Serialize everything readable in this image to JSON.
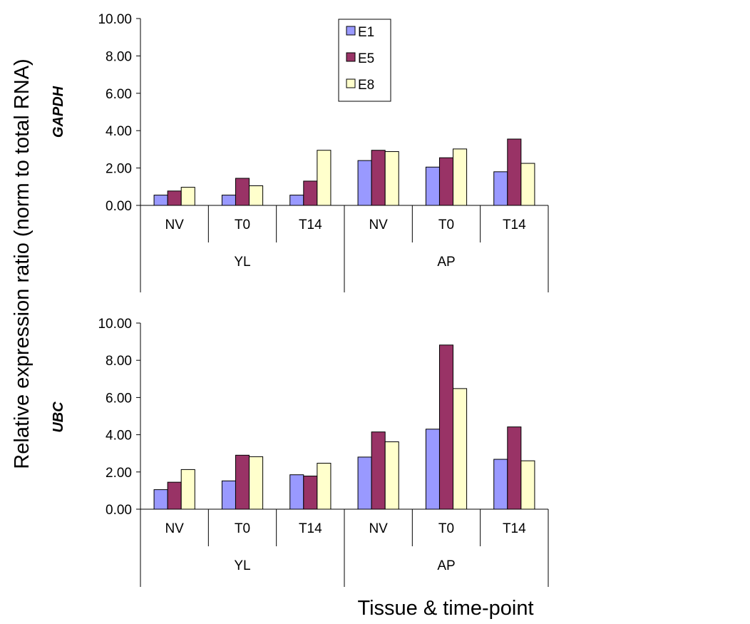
{
  "figure": {
    "ylabel": "Relative expression ratio (norm to total RNA)",
    "xlabel": "Tissue & time-point"
  },
  "colors": {
    "E1": "#9999ff",
    "E5": "#993366",
    "E8": "#ffffcc",
    "bar_stroke": "#000000"
  },
  "legend": {
    "placement": "top-center",
    "panel": "GAPDH",
    "entries": [
      "E1",
      "E5",
      "E8"
    ]
  },
  "chart_data": [
    {
      "type": "bar",
      "panel_label": "GAPDH",
      "groups": [
        {
          "label": "YL",
          "subcategories": [
            "NV",
            "T0",
            "T14"
          ]
        },
        {
          "label": "AP",
          "subcategories": [
            "NV",
            "T0",
            "T14"
          ]
        }
      ],
      "categories": [
        "NV",
        "T0",
        "T14",
        "NV",
        "T0",
        "T14"
      ],
      "series": [
        {
          "name": "E1",
          "values": [
            0.55,
            0.55,
            0.55,
            2.4,
            2.05,
            1.8
          ]
        },
        {
          "name": "E5",
          "values": [
            0.77,
            1.45,
            1.3,
            2.95,
            2.55,
            3.55
          ]
        },
        {
          "name": "E8",
          "values": [
            0.97,
            1.05,
            2.95,
            2.88,
            3.02,
            2.25
          ]
        }
      ],
      "ylim": [
        0,
        10
      ],
      "yticks": [
        "0.00",
        "2.00",
        "4.00",
        "6.00",
        "8.00",
        "10.00"
      ],
      "grid": false
    },
    {
      "type": "bar",
      "panel_label": "UBC",
      "groups": [
        {
          "label": "YL",
          "subcategories": [
            "NV",
            "T0",
            "T14"
          ]
        },
        {
          "label": "AP",
          "subcategories": [
            "NV",
            "T0",
            "T14"
          ]
        }
      ],
      "categories": [
        "NV",
        "T0",
        "T14",
        "NV",
        "T0",
        "T14"
      ],
      "series": [
        {
          "name": "E1",
          "values": [
            1.05,
            1.52,
            1.85,
            2.8,
            4.3,
            2.68
          ]
        },
        {
          "name": "E5",
          "values": [
            1.45,
            2.9,
            1.78,
            4.15,
            8.82,
            4.42
          ]
        },
        {
          "name": "E8",
          "values": [
            2.13,
            2.82,
            2.47,
            3.62,
            6.48,
            2.6
          ]
        }
      ],
      "ylim": [
        0,
        10
      ],
      "yticks": [
        "0.00",
        "2.00",
        "4.00",
        "6.00",
        "8.00",
        "10.00"
      ],
      "grid": false
    }
  ]
}
